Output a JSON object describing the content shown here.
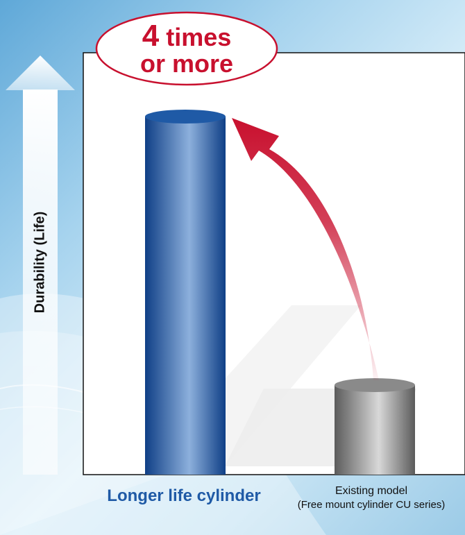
{
  "chart_data": {
    "type": "bar",
    "categories": [
      "Longer life cylinder",
      "Existing model"
    ],
    "category_sublabels": [
      "",
      "(Free mount cylinder CU series)"
    ],
    "values": [
      4,
      1
    ],
    "ylabel": "Durability (Life)",
    "annotation": {
      "number": "4",
      "text_after_number": "times",
      "line2": "or more"
    },
    "colors": {
      "bar_1": "#1f5aa6",
      "bar_2": "#8a8a8a",
      "arrow": "#c8102e",
      "category_1_label": "#1f5aa6"
    },
    "grid": false
  }
}
